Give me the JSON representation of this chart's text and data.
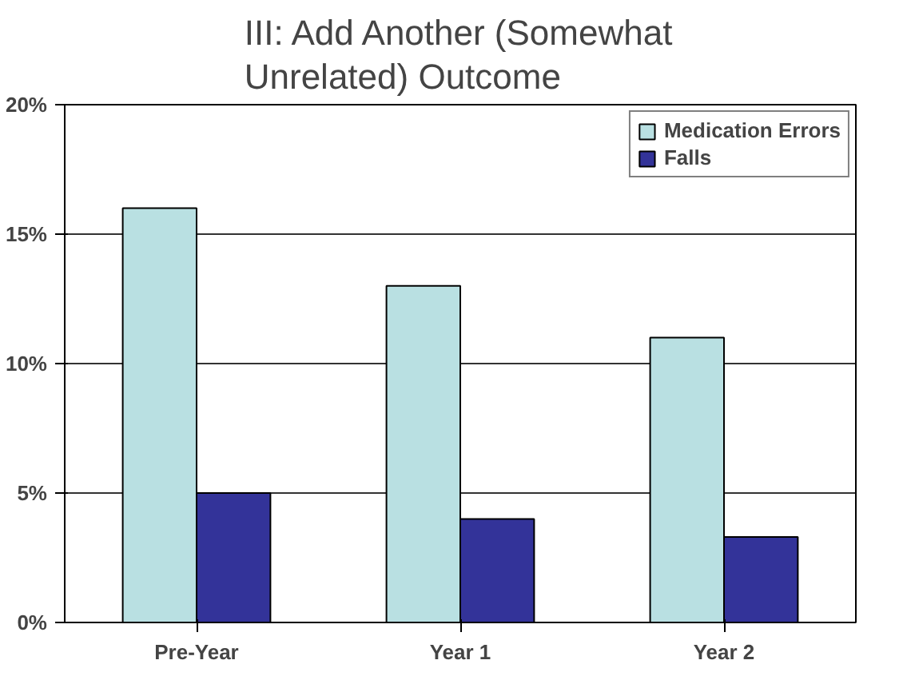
{
  "chart_data": {
    "type": "bar",
    "title": "III: Add Another (Somewhat Unrelated) Outcome",
    "categories": [
      "Pre-Year",
      "Year 1",
      "Year 2"
    ],
    "series": [
      {
        "name": "Medication Errors",
        "color": "#b9e0e2",
        "values": [
          16,
          13,
          11
        ]
      },
      {
        "name": "Falls",
        "color": "#333399",
        "values": [
          5,
          4,
          3.3
        ]
      }
    ],
    "ylim": [
      0,
      20
    ],
    "yticks": [
      {
        "value": 0,
        "label": "0%"
      },
      {
        "value": 5,
        "label": "5%"
      },
      {
        "value": 10,
        "label": "10%"
      },
      {
        "value": 15,
        "label": "15%"
      },
      {
        "value": 20,
        "label": "20%"
      }
    ],
    "grid": "y",
    "legend": "top right"
  }
}
